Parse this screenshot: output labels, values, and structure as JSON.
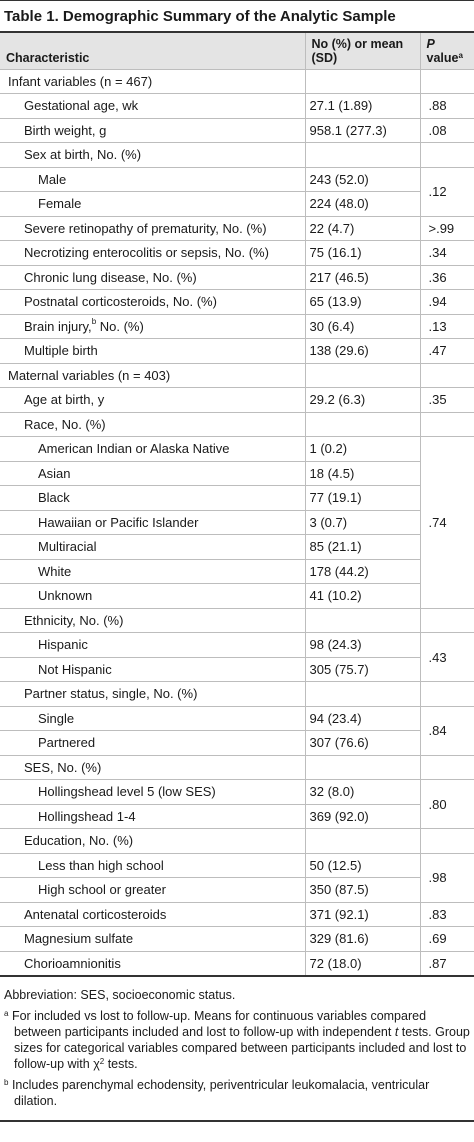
{
  "title": "Table 1. Demographic Summary of the Analytic Sample",
  "table": {
    "header": {
      "characteristic": "Characteristic",
      "value": "No (%) or mean (SD)",
      "p": "P",
      "p_rest": " value",
      "p_note": "a"
    },
    "sections": [
      {
        "label": "Infant variables (n = 467)",
        "items": [
          {
            "label": "Gestational age, wk",
            "value": "27.1 (1.89)",
            "p": ".88"
          },
          {
            "label": "Birth weight, g",
            "value": "958.1 (277.3)",
            "p": ".08"
          },
          {
            "label": "Sex at birth, No. (%)",
            "p": ".12",
            "items": [
              {
                "label": "Male",
                "value": "243 (52.0)"
              },
              {
                "label": "Female",
                "value": "224 (48.0)"
              }
            ]
          },
          {
            "label": "Severe retinopathy of prematurity, No. (%)",
            "value": "22 (4.7)",
            "p": ">.99"
          },
          {
            "label": "Necrotizing enterocolitis or sepsis, No. (%)",
            "value": "75 (16.1)",
            "p": ".34"
          },
          {
            "label": "Chronic lung disease, No. (%)",
            "value": "217 (46.5)",
            "p": ".36"
          },
          {
            "label": "Postnatal corticosteroids, No. (%)",
            "value": "65 (13.9)",
            "p": ".94"
          },
          {
            "label": "Brain injury,",
            "note": "b",
            "label_end": " No. (%)",
            "value": "30 (6.4)",
            "p": ".13"
          },
          {
            "label": "Multiple birth",
            "value": "138 (29.6)",
            "p": ".47"
          }
        ]
      },
      {
        "label": "Maternal variables (n = 403)",
        "items": [
          {
            "label": "Age at birth, y",
            "value": "29.2 (6.3)",
            "p": ".35"
          },
          {
            "label": "Race, No. (%)",
            "p": ".74",
            "items": [
              {
                "label": "American Indian or Alaska Native",
                "value": "1 (0.2)"
              },
              {
                "label": "Asian",
                "value": "18 (4.5)"
              },
              {
                "label": "Black",
                "value": "77 (19.1)"
              },
              {
                "label": "Hawaiian or Pacific Islander",
                "value": "3 (0.7)"
              },
              {
                "label": "Multiracial",
                "value": "85 (21.1)"
              },
              {
                "label": "White",
                "value": "178 (44.2)"
              },
              {
                "label": "Unknown",
                "value": "41 (10.2)"
              }
            ]
          },
          {
            "label": "Ethnicity, No. (%)",
            "p": ".43",
            "items": [
              {
                "label": "Hispanic",
                "value": "98 (24.3)"
              },
              {
                "label": "Not Hispanic",
                "value": "305 (75.7)"
              }
            ]
          },
          {
            "label": "Partner status, single, No. (%)",
            "p": ".84",
            "items": [
              {
                "label": "Single",
                "value": "94 (23.4)"
              },
              {
                "label": "Partnered",
                "value": "307 (76.6)"
              }
            ]
          },
          {
            "label": "SES, No. (%)",
            "p": ".80",
            "items": [
              {
                "label": "Hollingshead level 5 (low SES)",
                "value": "32 (8.0)"
              },
              {
                "label": "Hollingshead 1-4",
                "value": "369 (92.0)"
              }
            ]
          },
          {
            "label": "Education, No. (%)",
            "p": ".98",
            "items": [
              {
                "label": "Less than high school",
                "value": "50 (12.5)"
              },
              {
                "label": "High school or greater",
                "value": "350 (87.5)"
              }
            ]
          },
          {
            "label": "Antenatal corticosteroids",
            "value": "371 (92.1)",
            "p": ".83"
          },
          {
            "label": "Magnesium sulfate",
            "value": "329 (81.6)",
            "p": ".69"
          },
          {
            "label": "Chorioamnionitis",
            "value": "72 (18.0)",
            "p": ".87"
          }
        ]
      }
    ]
  },
  "footnotes": {
    "abbreviation": "Abbreviation: SES, socioeconomic status.",
    "a": {
      "marker": "a",
      "text": "For included vs lost to follow-up. Means for continuous variables compared between participants included and lost to follow-up with independent ",
      "italic": "t",
      "text2": " tests. Group sizes for categorical variables compared between participants included and lost to follow-up with χ",
      "sup": "2",
      "text3": " tests."
    },
    "b": {
      "marker": "b",
      "text": "Includes parenchymal echodensity, periventricular leukomalacia, ventricular dilation."
    }
  }
}
